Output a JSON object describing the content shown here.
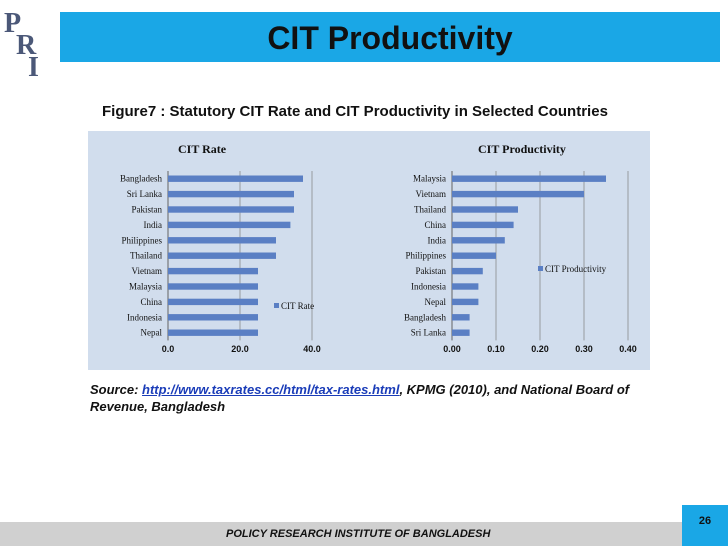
{
  "slide": {
    "title": "CIT Productivity",
    "figure_title": "Figure7 : Statutory CIT Rate and CIT Productivity in Selected Countries",
    "source_prefix": "Source: ",
    "source_link": "http://www.taxrates.cc/html/tax-rates.html",
    "source_suffix": ", KPMG (2010), and National Board of Revenue, Bangladesh",
    "footer": "POLICY RESEARCH INSTITUTE OF BANGLADESH",
    "page_number": "26",
    "logo_text": "PRI",
    "colors": {
      "title_bar": "#1aa7e6",
      "bar": "#5a7fc4",
      "chart_bg": "#d1dded"
    }
  },
  "chart_data": [
    {
      "type": "bar",
      "orientation": "horizontal",
      "title": "CIT Rate",
      "categories": [
        "Bangladesh",
        "Sri Lanka",
        "Pakistan",
        "India",
        "Philippines",
        "Thailand",
        "Vietnam",
        "Malaysia",
        "China",
        "Indonesia",
        "Nepal"
      ],
      "series": [
        {
          "name": "CIT Rate",
          "values": [
            37.5,
            35,
            35,
            34,
            30,
            30,
            25,
            25,
            25,
            25,
            25
          ]
        }
      ],
      "xlim": [
        0,
        40
      ],
      "ticks": [
        "0.0",
        "20.0",
        "40.0"
      ],
      "tick_values": [
        0,
        20,
        40
      ],
      "grid": true,
      "legend": "right"
    },
    {
      "type": "bar",
      "orientation": "horizontal",
      "title": "CIT Productivity",
      "categories": [
        "Malaysia",
        "Vietnam",
        "Thailand",
        "China",
        "India",
        "Philippines",
        "Pakistan",
        "Indonesia",
        "Nepal",
        "Bangladesh",
        "Sri Lanka"
      ],
      "series": [
        {
          "name": "CIT Productivity",
          "values": [
            0.35,
            0.3,
            0.15,
            0.14,
            0.12,
            0.1,
            0.07,
            0.06,
            0.06,
            0.04,
            0.04
          ]
        }
      ],
      "xlim": [
        0,
        0.4
      ],
      "ticks": [
        "0.00",
        "0.10",
        "0.20",
        "0.30",
        "0.40"
      ],
      "tick_values": [
        0,
        0.1,
        0.2,
        0.3,
        0.4
      ],
      "grid": true,
      "legend": "right"
    }
  ]
}
